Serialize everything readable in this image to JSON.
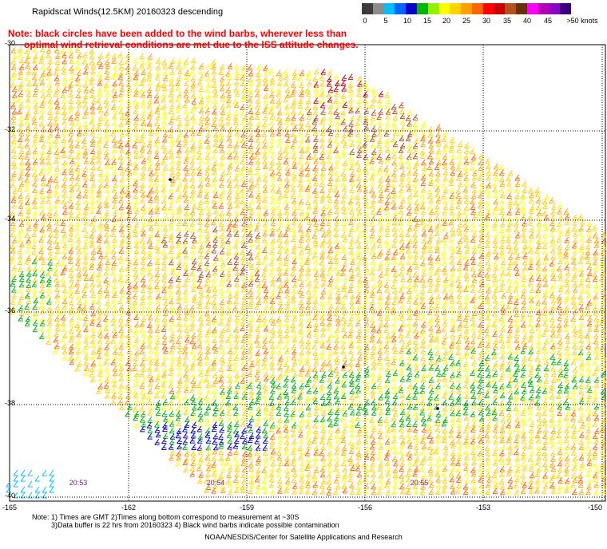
{
  "title": "Rapidscat Winds(12.5KM) 20160323 descending",
  "note_lines": [
    "Note: black circles have been added to the wind barbs, wherever less than",
    "      optimal wind retrieval conditions are met due to the ISS attitude changes."
  ],
  "legend": {
    "colors": [
      "#3c3c3c",
      "#8c8c8c",
      "#00bfff",
      "#0064ff",
      "#0000c8",
      "#00b400",
      "#98ee00",
      "#ffff00",
      "#ffd200",
      "#ffa000",
      "#ff6400",
      "#ff0000",
      "#c80000",
      "#b4501e",
      "#643200",
      "#ff00ff",
      "#b400b4",
      "#8c00c8",
      "#3c0078"
    ],
    "labels": [
      "0",
      "5",
      "10",
      "15",
      "20",
      "25",
      "30",
      "35",
      "40",
      "45",
      ">50 knots"
    ]
  },
  "lat_labels": [
    "-30",
    "-32",
    "-34",
    "-36",
    "-38",
    "-40"
  ],
  "lon_labels": [
    "-165",
    "-162",
    "-159",
    "-156",
    "-153",
    "-150"
  ],
  "times": [
    "20:53",
    "20:54",
    "20:55"
  ],
  "footer": {
    "line1": "Note: 1) Times are GMT 2)Times along bottom correspond to measurement at ~30S",
    "line2": "3)Data buffer is 22 hrs from 20160323 4) Black wind barbs indicate possible contamination",
    "credit": "NOAA/NESDIS/Center for Satellite Applications and Research"
  }
}
